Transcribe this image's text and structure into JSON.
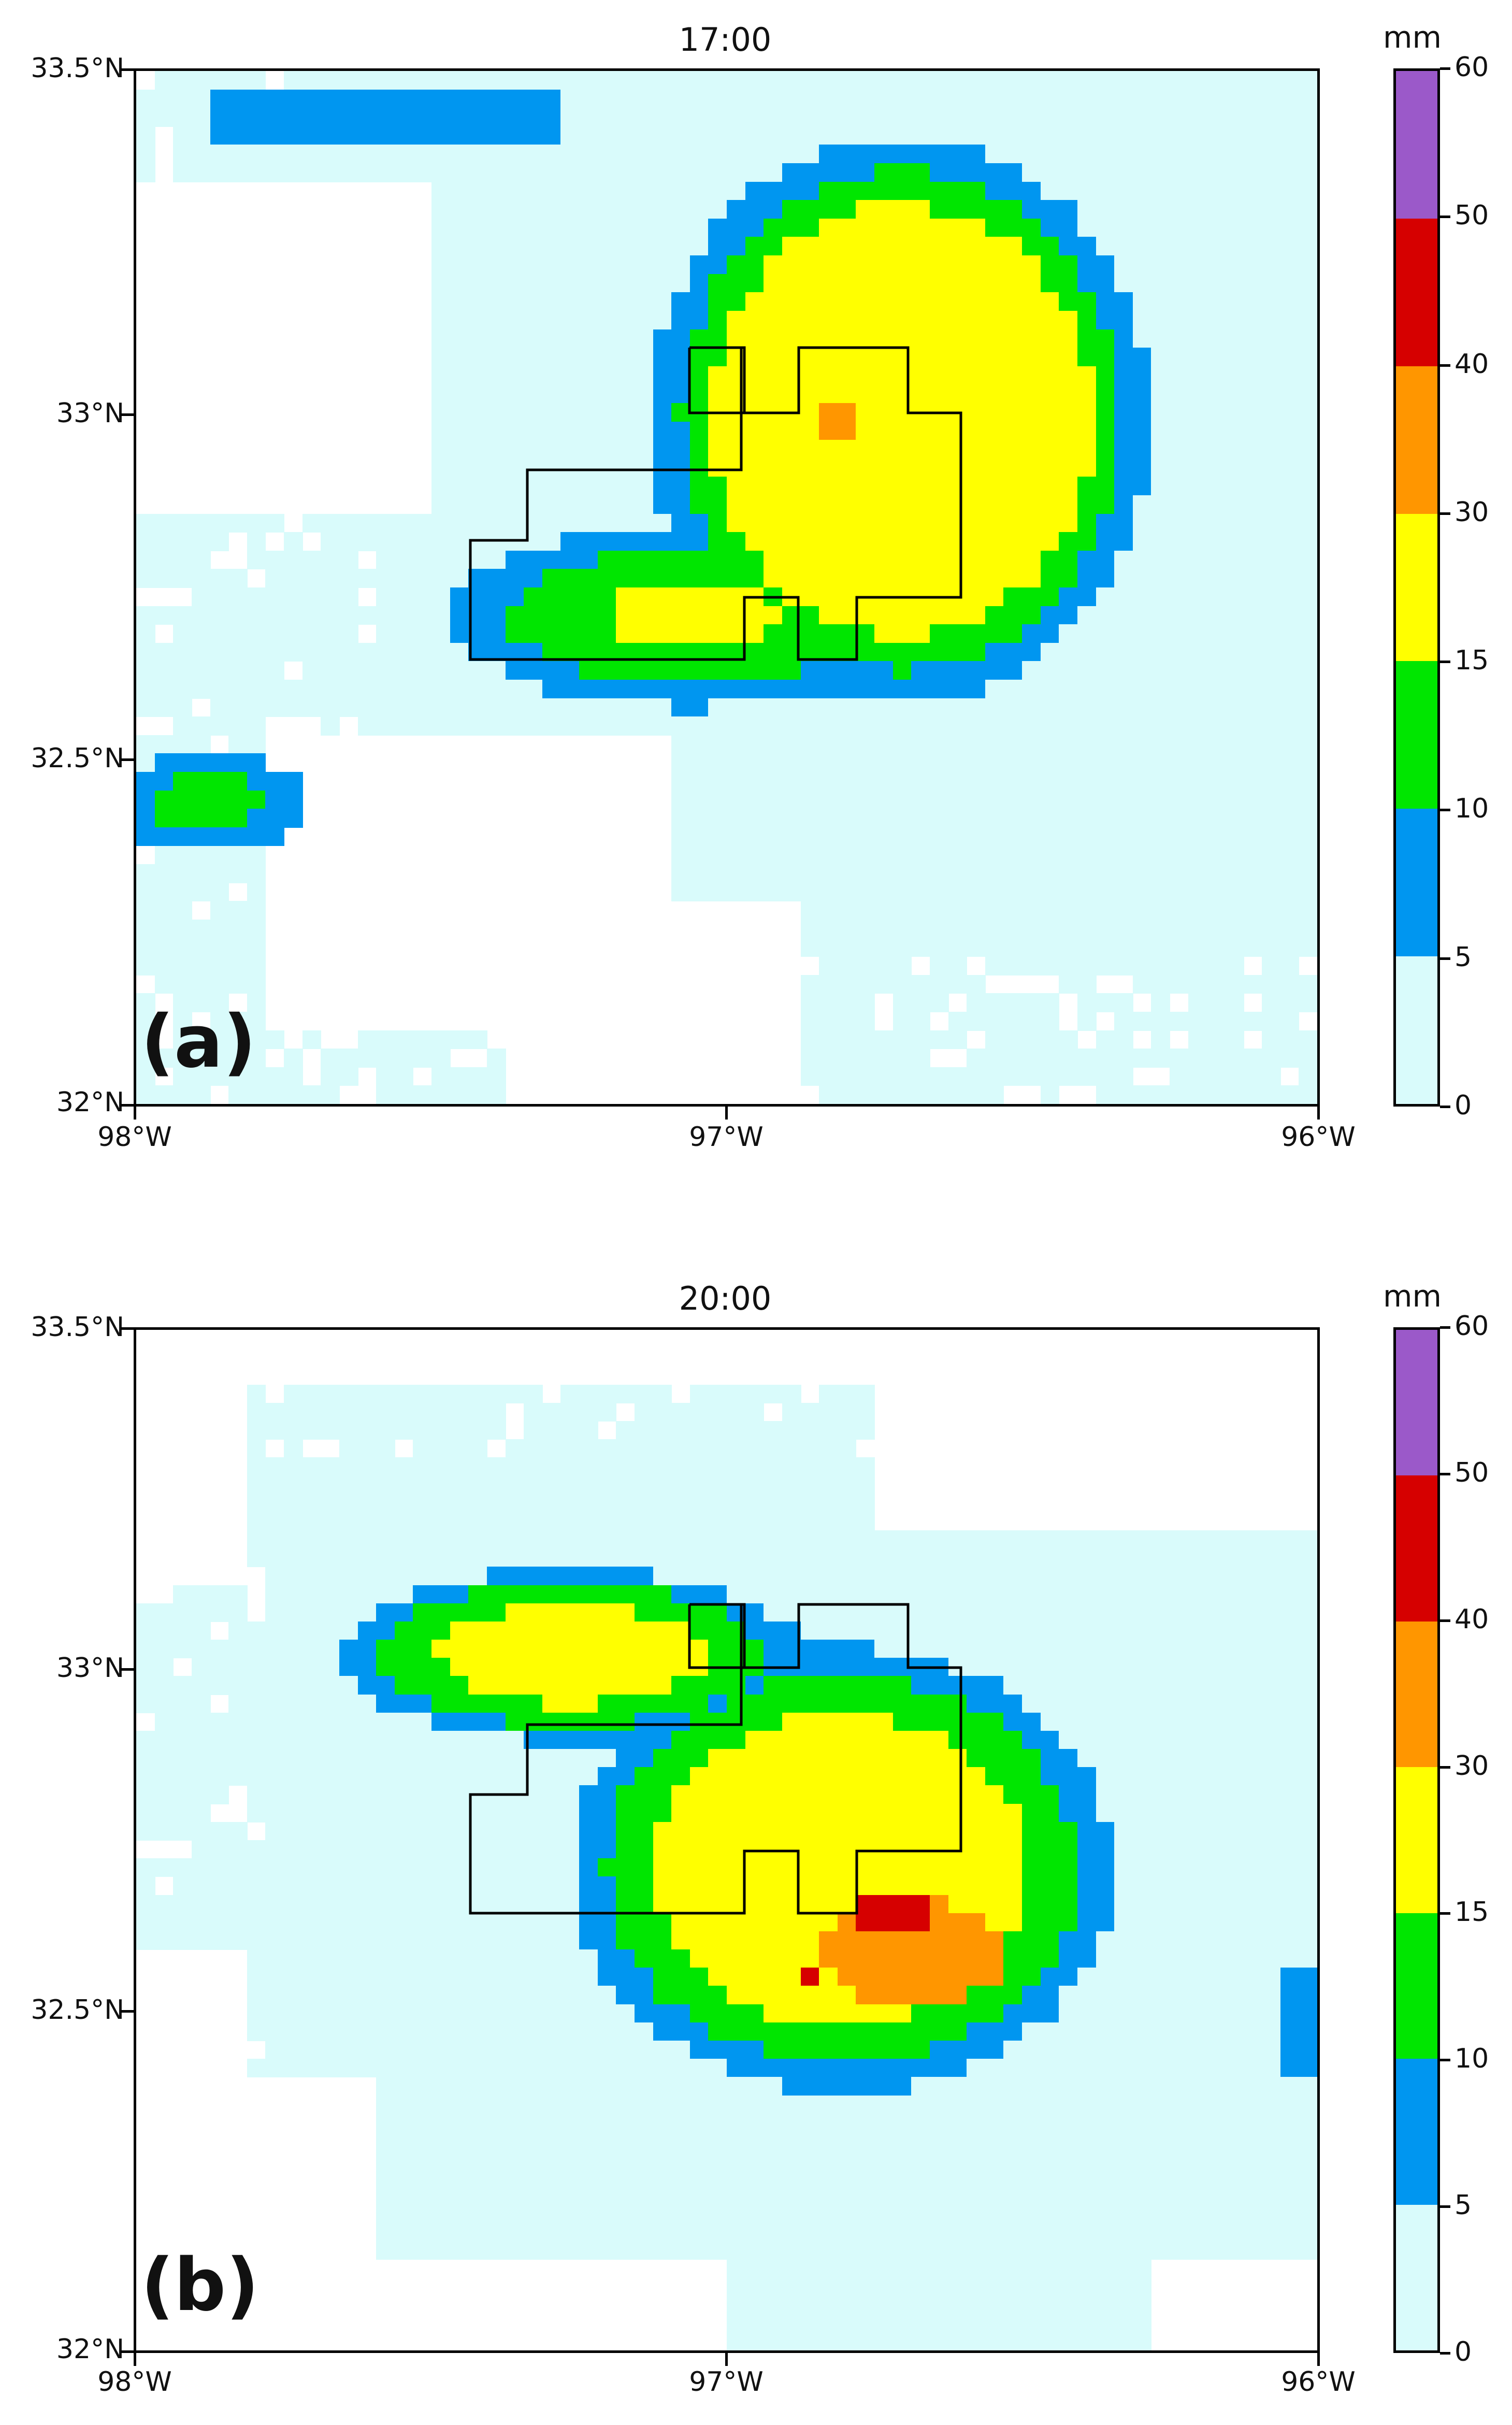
{
  "panels": [
    {
      "id": "a",
      "title": "17:00",
      "label": "(a)"
    },
    {
      "id": "b",
      "title": "20:00",
      "label": "(b)"
    }
  ],
  "axes": {
    "y_ticks": [
      "33.5°N",
      "33°N",
      "32.5°N",
      "32°N"
    ],
    "x_ticks": [
      "98°W",
      "97°W",
      "96°W"
    ],
    "lon_range": [
      -98,
      -96
    ],
    "lat_range": [
      32,
      33.5
    ]
  },
  "colorbar": {
    "unit": "mm",
    "ticks": [
      "0",
      "5",
      "10",
      "15",
      "30",
      "40",
      "50",
      "60"
    ],
    "classes": [
      {
        "range": "0-5",
        "color": "#d9fbfb"
      },
      {
        "range": "5-10",
        "color": "#0096f0"
      },
      {
        "range": "10-15",
        "color": "#00e600"
      },
      {
        "range": "15-30",
        "color": "#ffff00"
      },
      {
        "range": "30-40",
        "color": "#ff9600"
      },
      {
        "range": "40-50",
        "color": "#d60000"
      },
      {
        "range": "50-60",
        "color": "#9b59c9"
      }
    ]
  }
}
